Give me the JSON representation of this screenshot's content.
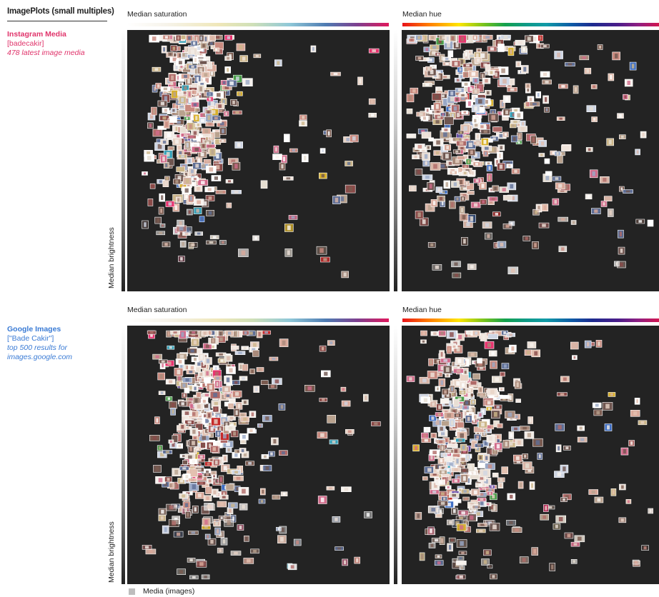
{
  "header": {
    "title": "ImagePlots (small multiples)"
  },
  "datasets": [
    {
      "title": "Instagram Media",
      "query": "[badecakir]",
      "description": "478 latest image media",
      "color": "#e0346b"
    },
    {
      "title": "Google Images",
      "query": "[\"Bade Cakir\"]",
      "description": "top 500 results for images.google.com",
      "color": "#3a7bd5"
    }
  ],
  "legend": {
    "label": "Media (images)",
    "swatch_color": "#bdbdbd"
  },
  "chart_data": [
    {
      "type": "scatter",
      "dataset": "Instagram Media",
      "xlabel": "Median saturation",
      "ylabel": "Median brightness",
      "mark": "image thumbnail",
      "n": 478
    },
    {
      "type": "scatter",
      "dataset": "Instagram Media",
      "xlabel": "Median hue",
      "ylabel": "Median brightness",
      "mark": "image thumbnail",
      "n": 478
    },
    {
      "type": "scatter",
      "dataset": "Google Images",
      "xlabel": "Median saturation",
      "ylabel": "Median brightness",
      "mark": "image thumbnail",
      "n": 500
    },
    {
      "type": "scatter",
      "dataset": "Google Images",
      "xlabel": "Median hue",
      "ylabel": "Median brightness",
      "mark": "image thumbnail",
      "n": 500
    }
  ]
}
